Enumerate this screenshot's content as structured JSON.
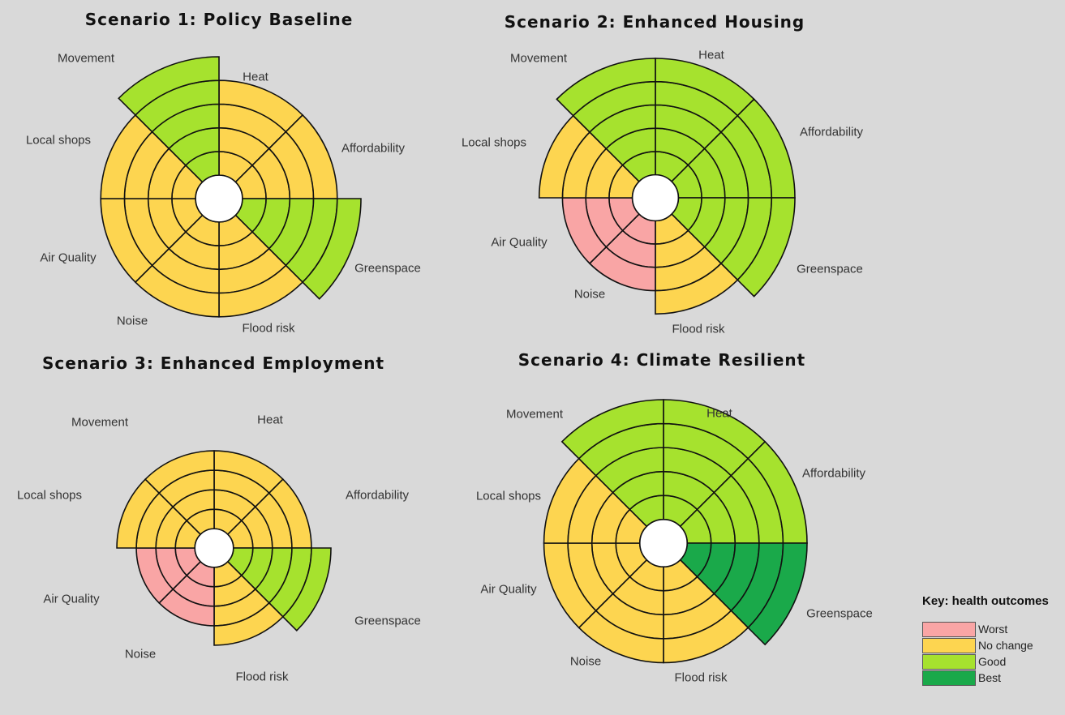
{
  "colors": {
    "worst": "#f9a5a5",
    "no_change": "#fdd550",
    "good": "#a6e22e",
    "best": "#1aa94a",
    "outline": "#111111"
  },
  "key": {
    "title": "Key: health outcomes",
    "items": [
      {
        "label": "Worst",
        "color": "#f9a5a5"
      },
      {
        "label": "No change",
        "color": "#fdd550"
      },
      {
        "label": "Good",
        "color": "#a6e22e"
      },
      {
        "label": "Best",
        "color": "#1aa94a"
      }
    ]
  },
  "chart_data": [
    {
      "type": "polar-area",
      "title": "Scenario 1: Policy Baseline",
      "categories": [
        "Heat",
        "Affordability",
        "Greenspace",
        "Flood risk",
        "Noise",
        "Air Quality",
        "Local shops",
        "Movement"
      ],
      "levels": 5,
      "values": [
        4,
        4,
        5,
        4,
        4,
        4,
        4,
        5
      ],
      "outcomes": [
        "No change",
        "No change",
        "Good",
        "No change",
        "No change",
        "No change",
        "No change",
        "Good"
      ]
    },
    {
      "type": "polar-area",
      "title": "Scenario 2: Enhanced Housing",
      "categories": [
        "Heat",
        "Affordability",
        "Greenspace",
        "Flood risk",
        "Noise",
        "Air Quality",
        "Local shops",
        "Movement"
      ],
      "levels": 5,
      "values": [
        5,
        5,
        5,
        4,
        3,
        3,
        4,
        5
      ],
      "outcomes": [
        "Good",
        "Good",
        "Good",
        "No change",
        "Worst",
        "Worst",
        "No change",
        "Good"
      ]
    },
    {
      "type": "polar-area",
      "title": "Scenario 3: Enhanced Employment",
      "categories": [
        "Heat",
        "Affordability",
        "Greenspace",
        "Flood risk",
        "Noise",
        "Air Quality",
        "Local shops",
        "Movement"
      ],
      "levels": 5,
      "values": [
        4,
        4,
        5,
        4,
        3,
        3,
        4,
        4
      ],
      "outcomes": [
        "No change",
        "No change",
        "Good",
        "No change",
        "Worst",
        "Worst",
        "No change",
        "No change"
      ]
    },
    {
      "type": "polar-area",
      "title": "Scenario 4: Climate Resilient",
      "categories": [
        "Heat",
        "Affordability",
        "Greenspace",
        "Flood risk",
        "Noise",
        "Air Quality",
        "Local shops",
        "Movement"
      ],
      "levels": 5,
      "values": [
        5,
        5,
        5,
        4,
        4,
        4,
        4,
        5
      ],
      "outcomes": [
        "Good",
        "Good",
        "Best",
        "No change",
        "No change",
        "No change",
        "No change",
        "Good"
      ]
    }
  ]
}
